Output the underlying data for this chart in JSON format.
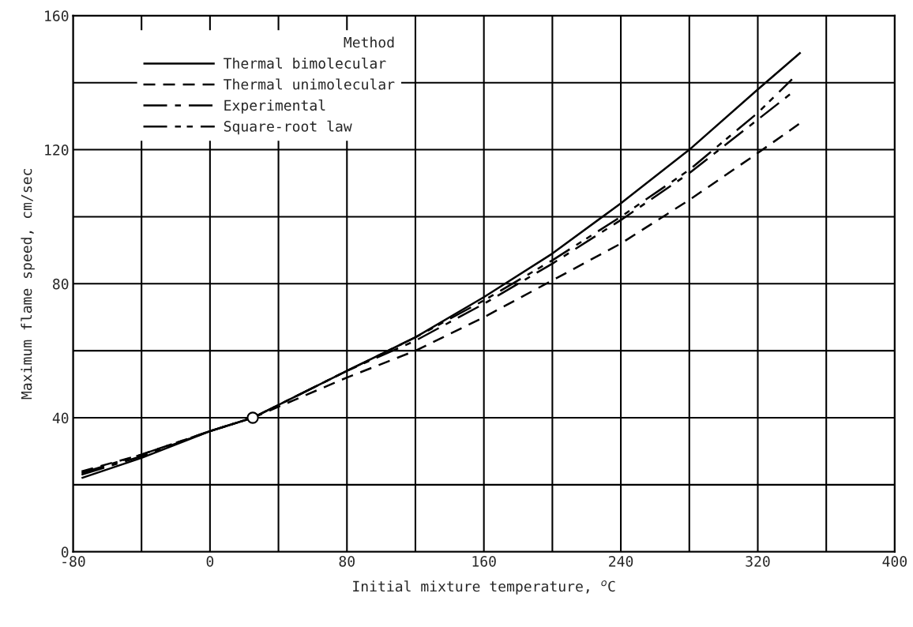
{
  "chart_data": {
    "type": "line",
    "xlabel": "Initial mixture temperature, $^{o}$C",
    "ylabel": "Maximum flame speed, cm/sec",
    "legend_title": "Method",
    "legend": "top left",
    "grid": true,
    "xlim": [
      -80,
      400
    ],
    "xticks": [
      -80,
      {
        "value": -40,
        "label": null
      },
      0,
      {
        "value": 40,
        "label": null
      },
      80,
      {
        "value": 120,
        "label": null
      },
      160,
      {
        "value": 200,
        "label": null
      },
      240,
      {
        "value": 280,
        "label": null
      },
      320,
      {
        "value": 360,
        "label": null
      },
      400
    ],
    "ylim": [
      0,
      160
    ],
    "yticks": [
      0,
      {
        "value": 20,
        "label": null
      },
      40,
      {
        "value": 60,
        "label": null
      },
      80,
      {
        "value": 100,
        "label": null
      },
      120,
      {
        "value": 140,
        "label": null
      },
      160
    ],
    "series": [
      {
        "name": "Thermal bimolecular",
        "color": "#000000",
        "line_style": "solid",
        "x": [
          -75,
          -40,
          0,
          25,
          80,
          120,
          160,
          200,
          240,
          280,
          320,
          345
        ],
        "values": [
          22,
          28,
          36,
          40,
          54,
          64,
          76,
          89,
          104,
          120,
          138,
          149
        ]
      },
      {
        "name": "Thermal unimolecular",
        "color": "#000000",
        "line_style": "dashed",
        "x": [
          -75,
          -40,
          0,
          25,
          80,
          120,
          160,
          200,
          240,
          280,
          320,
          345
        ],
        "values": [
          24,
          29,
          36,
          40,
          52,
          60,
          70,
          81,
          92,
          105,
          119,
          128
        ]
      },
      {
        "name": "Experimental",
        "color": "#000000",
        "line_style": "dashdot",
        "x": [
          -75,
          -40,
          0,
          25,
          80,
          120,
          160,
          200,
          240,
          280,
          320,
          340
        ],
        "values": [
          23,
          28.5,
          36,
          40,
          54,
          63,
          74,
          86,
          99,
          113,
          129,
          137
        ]
      },
      {
        "name": "Square-root law",
        "color": "#000000",
        "line_style": "dashdotdot",
        "x": [
          -75,
          -40,
          0,
          25,
          80,
          120,
          160,
          200,
          240,
          280,
          320,
          340
        ],
        "values": [
          23.5,
          29,
          36,
          40,
          54,
          64,
          75,
          87,
          100,
          114,
          131,
          141
        ]
      },
      {
        "type": "scatter",
        "color": "#000000",
        "marker": "circle",
        "x": [
          25
        ],
        "values": [
          40
        ]
      }
    ]
  }
}
